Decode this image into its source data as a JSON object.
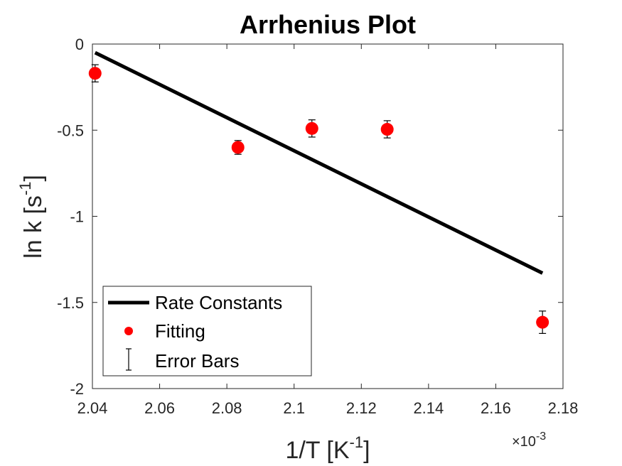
{
  "chart_data": {
    "type": "scatter",
    "title": "Arrhenius Plot",
    "xlabel_base": "1/T [K",
    "xlabel_sup": "-1",
    "xlabel_end": "]",
    "ylabel_base": "ln k [s",
    "ylabel_sup": "-1",
    "ylabel_end": "]",
    "x_exponent_prefix": "×10",
    "x_exponent_power": "-3",
    "xlim": [
      2.04,
      2.18
    ],
    "ylim": [
      -2,
      0
    ],
    "x_tick_labels": [
      "2.04",
      "2.06",
      "2.08",
      "2.1",
      "2.12",
      "2.14",
      "2.16",
      "2.18"
    ],
    "y_tick_labels": [
      "0",
      "-0.5",
      "-1",
      "-1.5",
      "-2"
    ],
    "grid": false,
    "legend_position": "bottom-left",
    "series": [
      {
        "name": "Rate Constants",
        "kind": "line",
        "color": "#000000",
        "x": [
          2.0408,
          2.1739
        ],
        "y": [
          -0.05,
          -1.33
        ]
      },
      {
        "name": "Fitting",
        "kind": "scatter",
        "color": "#ff0000",
        "x": [
          2.0408,
          2.0833,
          2.1053,
          2.1277,
          2.1739
        ],
        "y": [
          -0.17,
          -0.6,
          -0.49,
          -0.495,
          -1.615
        ]
      },
      {
        "name": "Error Bars",
        "kind": "errorbar",
        "color": "#000000",
        "x": [
          2.0408,
          2.0833,
          2.1053,
          2.1277,
          2.1739
        ],
        "y": [
          -0.17,
          -0.6,
          -0.49,
          -0.495,
          -1.615
        ],
        "error": [
          0.05,
          0.04,
          0.05,
          0.05,
          0.065
        ]
      }
    ]
  }
}
